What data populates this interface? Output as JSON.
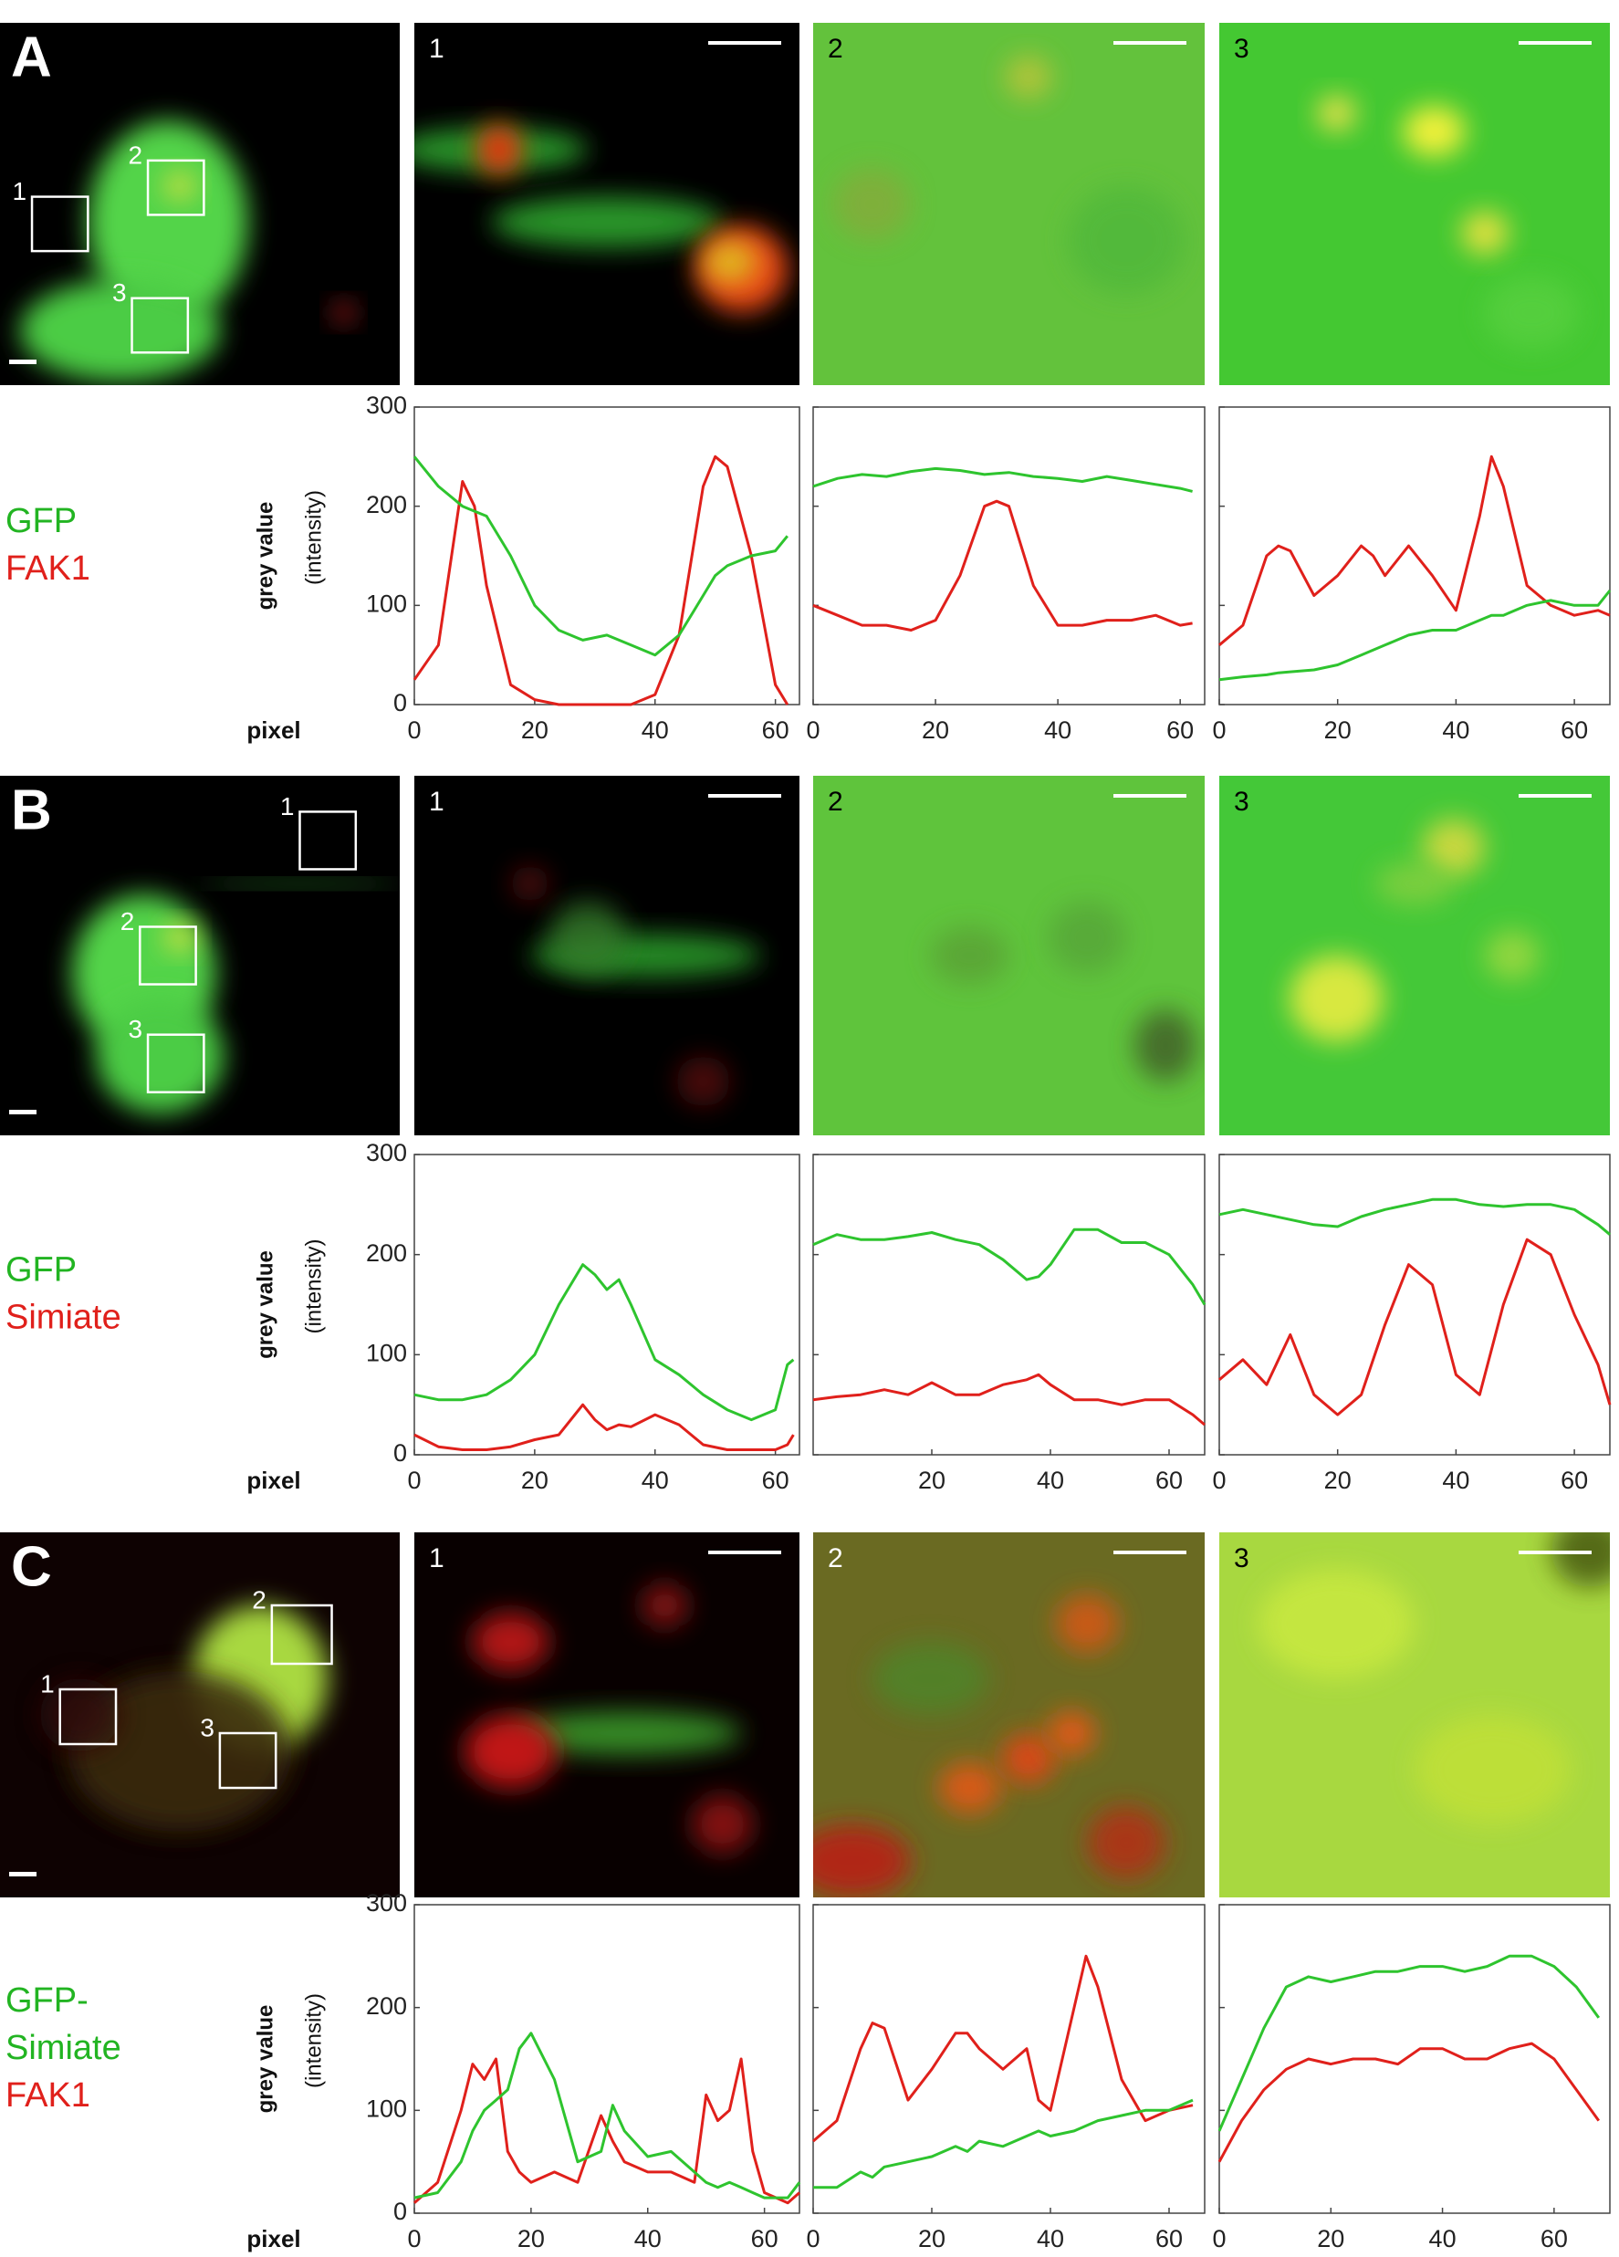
{
  "panels": [
    {
      "label": "A",
      "legend": [
        {
          "text": "GFP",
          "color": "#22b422"
        },
        {
          "text": "FAK1",
          "color": "#e0201b"
        }
      ],
      "insets": [
        "1",
        "2",
        "3"
      ],
      "y_label_bold": "grey value",
      "y_label": "(intensity)",
      "x_label": "pixel",
      "charts": [
        {
          "type": "line",
          "xlim": [
            0,
            64
          ],
          "xticks": [
            0,
            20,
            40,
            60
          ],
          "ylim": [
            0,
            300
          ],
          "yticks": [
            0,
            100,
            200,
            300
          ],
          "x": [
            0,
            4,
            8,
            10,
            12,
            16,
            20,
            24,
            28,
            32,
            36,
            40,
            44,
            48,
            50,
            52,
            56,
            60,
            62
          ],
          "series": [
            {
              "color": "#e0201b",
              "values": [
                25,
                60,
                225,
                200,
                120,
                20,
                5,
                0,
                0,
                0,
                0,
                10,
                70,
                220,
                250,
                240,
                150,
                20,
                0
              ]
            },
            {
              "color": "#2ec42e",
              "values": [
                250,
                220,
                200,
                195,
                190,
                150,
                100,
                75,
                65,
                70,
                60,
                50,
                70,
                110,
                130,
                140,
                150,
                155,
                170
              ]
            }
          ]
        },
        {
          "type": "line",
          "xlim": [
            0,
            64
          ],
          "xticks": [
            0,
            20,
            40,
            60
          ],
          "ylim": [
            0,
            300
          ],
          "yticks": [
            0,
            100,
            200,
            300
          ],
          "x": [
            0,
            4,
            8,
            12,
            16,
            20,
            24,
            28,
            30,
            32,
            36,
            40,
            44,
            48,
            52,
            56,
            60,
            62
          ],
          "series": [
            {
              "color": "#e0201b",
              "values": [
                100,
                90,
                80,
                80,
                75,
                85,
                130,
                200,
                205,
                200,
                120,
                80,
                80,
                85,
                85,
                90,
                80,
                82
              ]
            },
            {
              "color": "#2ec42e",
              "values": [
                220,
                228,
                232,
                230,
                235,
                238,
                236,
                232,
                233,
                234,
                230,
                228,
                225,
                230,
                226,
                222,
                218,
                215
              ]
            }
          ]
        },
        {
          "type": "line",
          "xlim": [
            0,
            66
          ],
          "xticks": [
            0,
            20,
            40,
            60
          ],
          "ylim": [
            0,
            300
          ],
          "yticks": [
            0,
            100,
            200,
            300
          ],
          "x": [
            0,
            4,
            8,
            10,
            12,
            16,
            20,
            24,
            26,
            28,
            32,
            36,
            40,
            44,
            46,
            48,
            52,
            56,
            60,
            64,
            66
          ],
          "series": [
            {
              "color": "#e0201b",
              "values": [
                60,
                80,
                150,
                160,
                155,
                110,
                130,
                160,
                150,
                130,
                160,
                130,
                95,
                190,
                250,
                220,
                120,
                100,
                90,
                95,
                90
              ]
            },
            {
              "color": "#2ec42e",
              "values": [
                25,
                28,
                30,
                32,
                33,
                35,
                40,
                50,
                55,
                60,
                70,
                75,
                75,
                85,
                90,
                90,
                100,
                105,
                100,
                100,
                115
              ]
            }
          ]
        }
      ]
    },
    {
      "label": "B",
      "legend": [
        {
          "text": "GFP",
          "color": "#22b422"
        },
        {
          "text": "Simiate",
          "color": "#e0201b"
        }
      ],
      "insets": [
        "1",
        "2",
        "3"
      ],
      "y_label_bold": "grey value",
      "y_label": "(intensity)",
      "x_label": "pixel",
      "charts": [
        {
          "type": "line",
          "xlim": [
            0,
            64
          ],
          "xticks": [
            0,
            20,
            40,
            60
          ],
          "ylim": [
            0,
            300
          ],
          "yticks": [
            0,
            100,
            200,
            300
          ],
          "x": [
            0,
            4,
            8,
            12,
            16,
            20,
            24,
            28,
            30,
            32,
            34,
            36,
            40,
            44,
            48,
            52,
            56,
            60,
            62,
            63
          ],
          "series": [
            {
              "color": "#e0201b",
              "values": [
                20,
                8,
                5,
                5,
                8,
                15,
                20,
                50,
                35,
                25,
                30,
                28,
                40,
                30,
                10,
                5,
                5,
                5,
                10,
                20
              ]
            },
            {
              "color": "#2ec42e",
              "values": [
                60,
                55,
                55,
                60,
                75,
                100,
                150,
                190,
                180,
                165,
                175,
                150,
                95,
                80,
                60,
                45,
                35,
                45,
                90,
                95
              ]
            }
          ]
        },
        {
          "type": "line",
          "xlim": [
            0,
            66
          ],
          "xticks": [
            20,
            40,
            60
          ],
          "ylim": [
            0,
            300
          ],
          "yticks": [
            0,
            100,
            200,
            300
          ],
          "x": [
            0,
            4,
            8,
            12,
            16,
            20,
            24,
            28,
            32,
            36,
            38,
            40,
            44,
            48,
            52,
            56,
            60,
            64,
            66
          ],
          "series": [
            {
              "color": "#e0201b",
              "values": [
                55,
                58,
                60,
                65,
                60,
                72,
                60,
                60,
                70,
                75,
                80,
                70,
                55,
                55,
                50,
                55,
                55,
                40,
                30
              ]
            },
            {
              "color": "#2ec42e",
              "values": [
                210,
                220,
                215,
                215,
                218,
                222,
                215,
                210,
                195,
                175,
                178,
                190,
                225,
                225,
                212,
                212,
                200,
                170,
                150
              ]
            }
          ]
        },
        {
          "type": "line",
          "xlim": [
            0,
            66
          ],
          "xticks": [
            0,
            20,
            40,
            60
          ],
          "ylim": [
            0,
            300
          ],
          "yticks": [
            0,
            100,
            200,
            300
          ],
          "x": [
            0,
            4,
            8,
            12,
            16,
            20,
            24,
            28,
            32,
            36,
            40,
            44,
            48,
            52,
            56,
            60,
            64,
            66
          ],
          "series": [
            {
              "color": "#e0201b",
              "values": [
                75,
                95,
                70,
                120,
                60,
                40,
                60,
                130,
                190,
                170,
                80,
                60,
                150,
                215,
                200,
                140,
                90,
                50
              ]
            },
            {
              "color": "#2ec42e",
              "values": [
                240,
                245,
                240,
                235,
                230,
                228,
                238,
                245,
                250,
                255,
                255,
                250,
                248,
                250,
                250,
                245,
                230,
                220
              ]
            }
          ]
        }
      ]
    },
    {
      "label": "C",
      "legend": [
        {
          "text": "GFP-",
          "color": "#22b422"
        },
        {
          "text": "Simiate",
          "color": "#22b422"
        },
        {
          "text": "FAK1",
          "color": "#e0201b"
        }
      ],
      "insets": [
        "1",
        "2",
        "3"
      ],
      "y_label_bold": "grey value",
      "y_label": "(intensity)",
      "x_label": "pixel",
      "charts": [
        {
          "type": "line",
          "xlim": [
            0,
            66
          ],
          "xticks": [
            0,
            20,
            40,
            60
          ],
          "ylim": [
            0,
            300
          ],
          "yticks": [
            0,
            100,
            200,
            300
          ],
          "x": [
            0,
            4,
            8,
            10,
            12,
            14,
            16,
            18,
            20,
            24,
            28,
            32,
            34,
            36,
            40,
            44,
            48,
            50,
            52,
            54,
            56,
            58,
            60,
            64,
            66
          ],
          "series": [
            {
              "color": "#e0201b",
              "values": [
                10,
                30,
                100,
                145,
                130,
                150,
                60,
                40,
                30,
                40,
                30,
                95,
                70,
                50,
                40,
                40,
                30,
                115,
                90,
                100,
                150,
                60,
                20,
                10,
                20
              ]
            },
            {
              "color": "#2ec42e",
              "values": [
                15,
                20,
                50,
                80,
                100,
                110,
                120,
                160,
                175,
                130,
                50,
                60,
                105,
                80,
                55,
                60,
                40,
                30,
                25,
                30,
                25,
                20,
                15,
                15,
                30
              ]
            }
          ]
        },
        {
          "type": "line",
          "xlim": [
            0,
            66
          ],
          "xticks": [
            0,
            20,
            40,
            60
          ],
          "ylim": [
            0,
            300
          ],
          "yticks": [
            0,
            100,
            200,
            300
          ],
          "x": [
            0,
            4,
            8,
            10,
            12,
            16,
            20,
            24,
            26,
            28,
            32,
            36,
            38,
            40,
            44,
            46,
            48,
            52,
            56,
            60,
            64
          ],
          "series": [
            {
              "color": "#e0201b",
              "values": [
                70,
                90,
                160,
                185,
                180,
                110,
                140,
                175,
                175,
                160,
                140,
                160,
                110,
                100,
                200,
                250,
                220,
                130,
                90,
                100,
                105
              ]
            },
            {
              "color": "#2ec42e",
              "values": [
                25,
                25,
                40,
                35,
                45,
                50,
                55,
                65,
                60,
                70,
                65,
                75,
                80,
                75,
                80,
                85,
                90,
                95,
                100,
                100,
                110
              ]
            }
          ]
        },
        {
          "type": "line",
          "xlim": [
            0,
            70
          ],
          "xticks": [
            0,
            20,
            40,
            60
          ],
          "ylim": [
            0,
            300
          ],
          "yticks": [
            0,
            100,
            200,
            300
          ],
          "x": [
            0,
            4,
            8,
            12,
            16,
            20,
            24,
            28,
            32,
            36,
            40,
            44,
            48,
            52,
            56,
            60,
            64,
            68
          ],
          "series": [
            {
              "color": "#e0201b",
              "values": [
                50,
                90,
                120,
                140,
                150,
                145,
                150,
                150,
                145,
                160,
                160,
                150,
                150,
                160,
                165,
                150,
                120,
                90
              ]
            },
            {
              "color": "#2ec42e",
              "values": [
                80,
                130,
                180,
                220,
                230,
                225,
                230,
                235,
                235,
                240,
                240,
                235,
                240,
                250,
                250,
                240,
                220,
                190
              ]
            }
          ]
        }
      ]
    }
  ]
}
